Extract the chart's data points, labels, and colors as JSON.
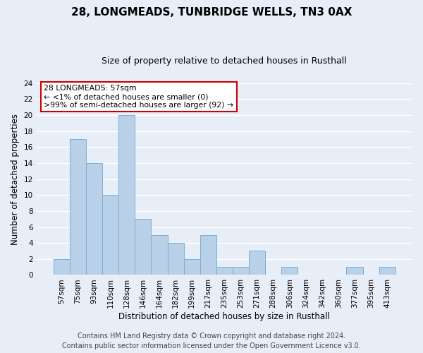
{
  "title": "28, LONGMEADS, TUNBRIDGE WELLS, TN3 0AX",
  "subtitle": "Size of property relative to detached houses in Rusthall",
  "xlabel": "Distribution of detached houses by size in Rusthall",
  "ylabel": "Number of detached properties",
  "bar_labels": [
    "57sqm",
    "75sqm",
    "93sqm",
    "110sqm",
    "128sqm",
    "146sqm",
    "164sqm",
    "182sqm",
    "199sqm",
    "217sqm",
    "235sqm",
    "253sqm",
    "271sqm",
    "288sqm",
    "306sqm",
    "324sqm",
    "342sqm",
    "360sqm",
    "377sqm",
    "395sqm",
    "413sqm"
  ],
  "bar_values": [
    2,
    17,
    14,
    10,
    20,
    7,
    5,
    4,
    2,
    5,
    1,
    1,
    3,
    0,
    1,
    0,
    0,
    0,
    1,
    0,
    1
  ],
  "bar_color": "#b8d0e8",
  "bar_edge_color": "#7aafd4",
  "annotation_title": "28 LONGMEADS: 57sqm",
  "annotation_line1": "← <1% of detached houses are smaller (0)",
  "annotation_line2": ">99% of semi-detached houses are larger (92) →",
  "annotation_box_facecolor": "#ffffff",
  "annotation_box_edgecolor": "#cc0000",
  "ylim": [
    0,
    24
  ],
  "yticks": [
    0,
    2,
    4,
    6,
    8,
    10,
    12,
    14,
    16,
    18,
    20,
    22,
    24
  ],
  "footer_line1": "Contains HM Land Registry data © Crown copyright and database right 2024.",
  "footer_line2": "Contains public sector information licensed under the Open Government Licence v3.0.",
  "background_color": "#e8eef8",
  "grid_color": "#ffffff",
  "title_fontsize": 11,
  "subtitle_fontsize": 9,
  "axis_label_fontsize": 8.5,
  "tick_fontsize": 7.5,
  "footer_fontsize": 7
}
